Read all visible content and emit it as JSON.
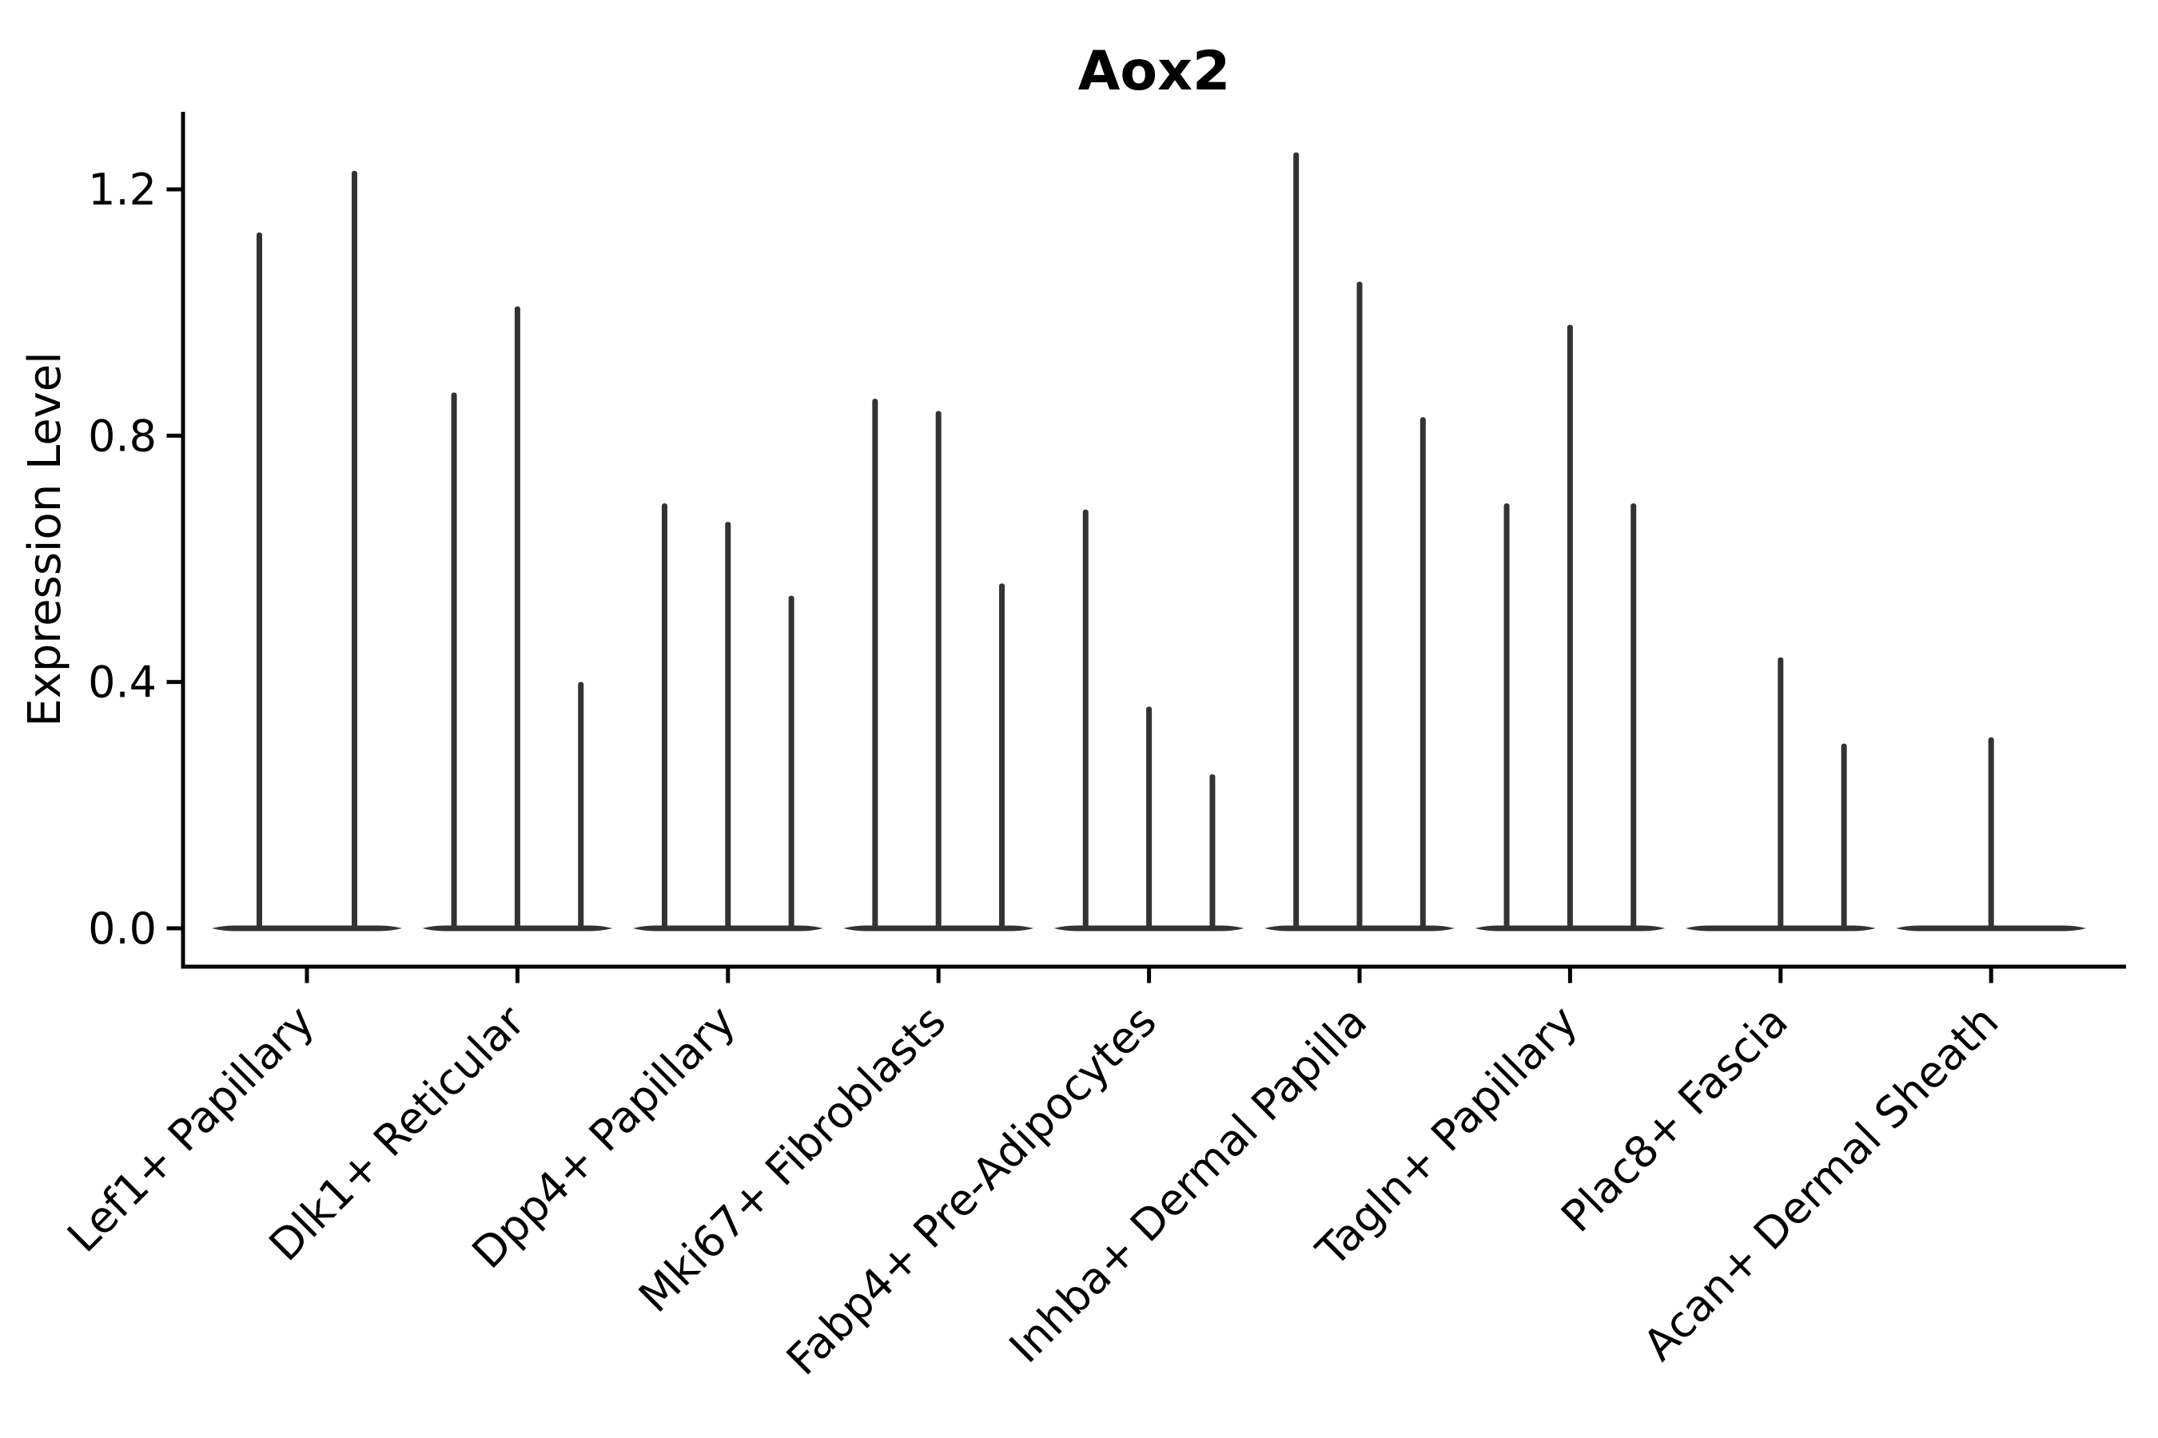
{
  "chart_data": {
    "type": "violin",
    "title": "Aox2",
    "ylabel": "Expression Level",
    "xlabel": "",
    "grid": false,
    "legend": false,
    "ytick_labels": [
      "0.0",
      "0.4",
      "0.8",
      "1.2"
    ],
    "ytick_values": [
      0.0,
      0.4,
      0.8,
      1.2
    ],
    "ylim": [
      -0.06,
      1.33
    ],
    "categories": [
      "Lef1+ Papillary",
      "Dlk1+ Reticular",
      "Dpp4+ Papillary",
      "Mki67+ Fibroblasts",
      "Fabp4+ Pre-Adipocytes",
      "Inhba+ Dermal Papilla",
      "Tagln+ Papillary",
      "Plac8+ Fascia",
      "Acan+ Dermal Sheath"
    ],
    "groups": [
      {
        "label": "Lef1+ Papillary",
        "violin_maxima": [
          1.13,
          1.23
        ]
      },
      {
        "label": "Dlk1+ Reticular",
        "violin_maxima": [
          0.87,
          1.01,
          0.4
        ]
      },
      {
        "label": "Dpp4+ Papillary",
        "violin_maxima": [
          0.69,
          0.66,
          0.54
        ]
      },
      {
        "label": "Mki67+ Fibroblasts",
        "violin_maxima": [
          0.86,
          0.84,
          0.56
        ]
      },
      {
        "label": "Fabp4+ Pre-Adipocytes",
        "violin_maxima": [
          0.68,
          0.36,
          0.25
        ]
      },
      {
        "label": "Inhba+ Dermal Papilla",
        "violin_maxima": [
          1.26,
          1.05,
          0.83
        ]
      },
      {
        "label": "Tagln+ Papillary",
        "violin_maxima": [
          0.69,
          0.98,
          0.69
        ]
      },
      {
        "label": "Plac8+ Fascia",
        "violin_maxima": [
          0,
          0.44,
          0.3
        ]
      },
      {
        "label": "Acan+ Dermal Sheath",
        "violin_maxima": [
          0,
          0.31,
          0
        ]
      }
    ],
    "colors": {
      "violin": "#333333",
      "axis": "#000000",
      "text": "#000000",
      "background": "#ffffff"
    }
  }
}
